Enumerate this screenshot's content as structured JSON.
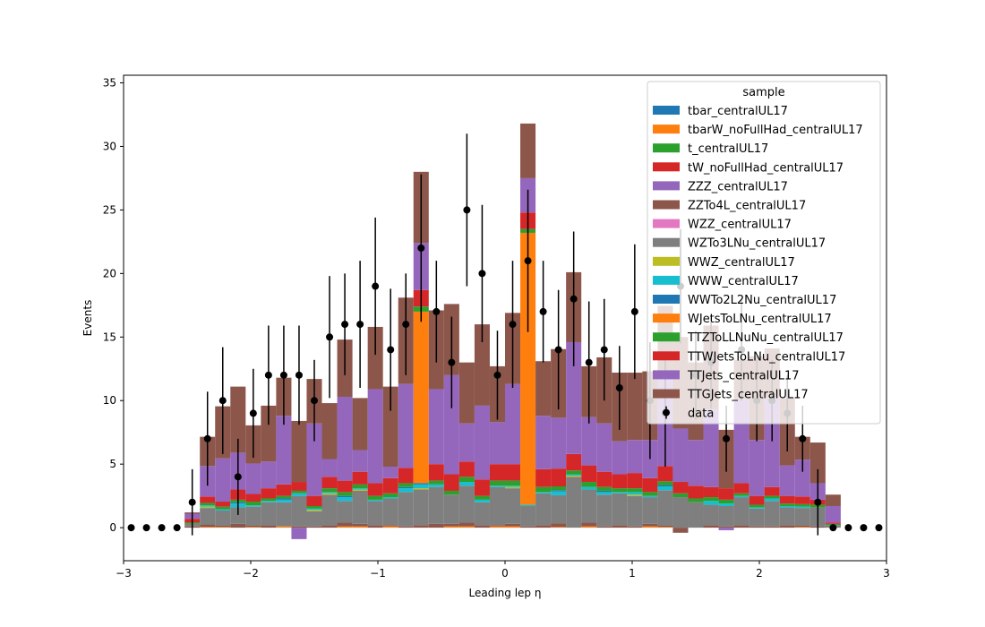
{
  "chart_data": {
    "type": "bar",
    "stacked": true,
    "histogram": true,
    "title": "",
    "xlabel": "Leading lep η",
    "ylabel": "Events",
    "xlim": [
      -3,
      3
    ],
    "ylim": [
      -2.6,
      35.6
    ],
    "xticks": [
      -3,
      -2,
      -1,
      0,
      1,
      2,
      3
    ],
    "xtick_labels": [
      "−3",
      "−2",
      "−1",
      "0",
      "1",
      "2",
      "3"
    ],
    "yticks": [
      0,
      5,
      10,
      15,
      20,
      25,
      30,
      35
    ],
    "ytick_labels": [
      "0",
      "5",
      "10",
      "15",
      "20",
      "25",
      "30",
      "35"
    ],
    "legend_title": "sample",
    "legend_position": "top-right",
    "bin_edges": [
      -3.0,
      -2.88,
      -2.76,
      -2.64,
      -2.52,
      -2.4,
      -2.28,
      -2.16,
      -2.04,
      -1.92,
      -1.8,
      -1.68,
      -1.56,
      -1.44,
      -1.32,
      -1.2,
      -1.08,
      -0.96,
      -0.84,
      -0.72,
      -0.6,
      -0.48,
      -0.36,
      -0.24,
      -0.12,
      0.0,
      0.12,
      0.24,
      0.36,
      0.48,
      0.6,
      0.72,
      0.84,
      0.96,
      1.08,
      1.2,
      1.32,
      1.44,
      1.56,
      1.68,
      1.8,
      1.92,
      2.04,
      2.16,
      2.28,
      2.4,
      2.52,
      2.64,
      2.76,
      2.88,
      3.0
    ],
    "series": [
      {
        "name": "tbar_centralUL17",
        "color": "#1f77b4",
        "values": [
          0,
          0,
          0,
          0,
          0,
          0,
          0,
          0,
          0,
          0,
          0,
          0,
          0,
          0,
          0,
          0,
          0,
          0,
          0,
          0,
          0,
          0,
          0,
          0,
          0,
          0,
          0,
          0,
          0,
          0,
          0,
          0,
          0,
          0,
          0,
          0,
          0,
          0,
          0,
          0,
          0,
          0,
          0,
          0,
          0,
          0,
          0,
          0,
          0,
          0
        ]
      },
      {
        "name": "tbarW_noFullHad_centralUL17",
        "color": "#ff7f0e",
        "values": [
          0,
          0,
          0,
          0,
          0,
          0.05,
          0.05,
          0,
          0.05,
          0,
          0.1,
          0,
          0,
          0,
          0.1,
          0.1,
          0,
          0.1,
          0,
          0,
          0,
          0.1,
          0.1,
          0,
          0.1,
          0.1,
          0,
          0,
          0.05,
          0,
          0.1,
          0,
          0,
          0,
          0.1,
          0.05,
          0,
          0,
          0,
          0,
          0,
          0,
          0,
          0,
          0.05,
          0,
          0,
          0,
          0,
          0
        ]
      },
      {
        "name": "t_centralUL17",
        "color": "#2ca02c",
        "values": [
          0,
          0,
          0,
          0,
          0,
          0,
          0,
          0,
          0,
          0,
          0,
          0,
          0,
          0,
          0,
          0,
          0,
          0,
          0,
          0,
          0,
          0,
          0,
          0,
          0,
          0,
          0,
          0,
          0,
          0,
          0,
          0,
          0,
          0,
          0,
          0,
          0,
          0,
          0,
          0,
          0,
          0,
          0,
          0,
          0,
          0,
          0,
          0,
          0,
          0
        ]
      },
      {
        "name": "tW_noFullHad_centralUL17",
        "color": "#d62728",
        "values": [
          0,
          0,
          0,
          0,
          0,
          0,
          0,
          0,
          0,
          0,
          0,
          0,
          0,
          0,
          0,
          0,
          0,
          0,
          0,
          0,
          0,
          0,
          0,
          0,
          0,
          0,
          0,
          0,
          0,
          0,
          0,
          0,
          0,
          0,
          0,
          0,
          0,
          0,
          0,
          0,
          0,
          0,
          0,
          0,
          0,
          0,
          0,
          0,
          0,
          0
        ]
      },
      {
        "name": "ZZZ_centralUL17",
        "color": "#9467bd",
        "values": [
          0,
          0,
          0,
          0,
          0,
          0,
          0,
          0,
          0,
          0,
          0,
          0,
          0,
          0,
          0,
          0,
          0,
          0,
          0,
          0,
          0,
          0,
          0,
          0,
          0,
          0,
          0,
          0,
          0,
          0,
          0,
          0,
          0,
          0,
          0,
          0,
          0,
          0,
          0,
          0,
          0,
          0,
          0,
          0,
          0,
          0,
          0,
          0,
          0,
          0
        ]
      },
      {
        "name": "ZZTo4L_centralUL17",
        "color": "#8c564b",
        "values": [
          0,
          0,
          0,
          0,
          0.1,
          0.2,
          0.1,
          0.3,
          0.1,
          0.2,
          0,
          0.1,
          0.1,
          0.2,
          0.3,
          0.2,
          0.2,
          0.1,
          0.1,
          0.2,
          0.3,
          0.2,
          0.3,
          0.2,
          0.1,
          0.2,
          0.1,
          0.2,
          0.3,
          0,
          0.3,
          0.1,
          0.2,
          0.1,
          0.2,
          0.1,
          -0.4,
          0,
          0.2,
          0.1,
          0.2,
          0.1,
          0.1,
          0.2,
          0.1,
          0.1,
          0,
          0,
          0,
          0
        ]
      },
      {
        "name": "WZZ_centralUL17",
        "color": "#e377c2",
        "values": [
          0,
          0,
          0,
          0,
          0,
          0,
          0,
          0,
          0,
          0,
          0,
          0,
          0,
          0,
          0,
          0,
          0,
          0,
          0,
          0,
          0,
          0,
          0,
          0,
          0,
          0,
          0,
          0,
          0,
          0,
          0,
          0,
          0,
          0,
          0,
          0,
          0,
          0,
          0,
          0,
          0,
          0,
          0,
          0,
          0,
          0,
          0,
          0,
          0,
          0
        ]
      },
      {
        "name": "WZTo3LNu_centralUL17",
        "color": "#7f7f7f",
        "values": [
          0,
          0,
          0,
          0,
          0.2,
          1.3,
          1.2,
          1.3,
          1.5,
          1.8,
          1.9,
          2.4,
          1.2,
          2.4,
          1.7,
          2.6,
          1.9,
          2.1,
          2.7,
          2.8,
          2.9,
          2.3,
          2.9,
          1.8,
          3.0,
          2.8,
          1.6,
          2.5,
          2.2,
          4.0,
          2.6,
          2.5,
          2.5,
          2.4,
          2.1,
          2.8,
          2.4,
          2.0,
          1.6,
          1.6,
          2.2,
          1.4,
          2.0,
          1.4,
          1.4,
          1.5,
          0.2,
          0,
          0,
          0
        ]
      },
      {
        "name": "WWZ_centralUL17",
        "color": "#bcbd22",
        "values": [
          0,
          0,
          0,
          0,
          0,
          0.1,
          0,
          0,
          0,
          0,
          0,
          0,
          0.1,
          0.1,
          0,
          0.1,
          0,
          0,
          0,
          0.1,
          0,
          0,
          0,
          0,
          0,
          0.1,
          0,
          0,
          0,
          0.1,
          0,
          0,
          0,
          0.1,
          0,
          0,
          0,
          0,
          0,
          0,
          0,
          0,
          0,
          0,
          0,
          0,
          0,
          0,
          0,
          0
        ]
      },
      {
        "name": "WWW_centralUL17",
        "color": "#17becf",
        "values": [
          0,
          0,
          0,
          0,
          0,
          0.1,
          0.1,
          0.3,
          0.1,
          0.1,
          0.2,
          0.2,
          0.1,
          0.1,
          0.3,
          0.1,
          0.1,
          0.1,
          0.3,
          0.3,
          0.2,
          0,
          0.3,
          0.2,
          0.1,
          0.1,
          0.1,
          0.1,
          0.3,
          0.1,
          0.2,
          0.2,
          0.1,
          0.2,
          0.1,
          0.3,
          0,
          0,
          0.3,
          0.2,
          0.1,
          0.1,
          0.2,
          0.1,
          0.1,
          0,
          0,
          0,
          0,
          0
        ]
      },
      {
        "name": "WWTo2L2Nu_centralUL17",
        "color": "#1f77b4",
        "values": [
          0,
          0,
          0,
          0,
          0,
          0,
          0,
          0.1,
          0,
          0,
          0.1,
          0,
          0,
          0,
          0.1,
          0,
          0,
          0,
          0.1,
          0.1,
          0,
          0,
          0,
          0,
          0,
          0,
          0,
          0,
          0.1,
          0,
          0,
          0.1,
          0,
          0,
          0,
          0.1,
          0,
          0,
          0,
          0,
          0,
          0,
          0,
          0,
          0,
          0,
          0,
          0,
          0,
          0
        ]
      },
      {
        "name": "WJetsToLNu_centralUL17",
        "color": "#ff7f0e",
        "values": [
          0,
          0,
          0,
          0,
          0,
          0,
          0,
          0,
          0,
          0,
          0,
          0,
          0,
          0,
          0,
          0,
          0,
          0,
          0,
          13.5,
          0,
          0,
          0,
          0,
          0,
          0,
          21.4,
          0,
          0,
          0,
          0,
          0,
          0,
          0,
          0,
          0,
          0,
          0,
          0,
          0,
          0,
          0,
          0,
          0,
          0,
          0,
          0,
          0,
          0,
          0
        ]
      },
      {
        "name": "TTZToLLNuNu_centralUL17",
        "color": "#2ca02c",
        "values": [
          0,
          0,
          0,
          0,
          0.1,
          0.2,
          0.2,
          0.2,
          0.3,
          0.2,
          0.2,
          0.2,
          0.2,
          0.3,
          0.3,
          0.3,
          0.3,
          0.3,
          0.3,
          0.4,
          0.3,
          0.3,
          0.4,
          0.3,
          0.4,
          0.4,
          0.3,
          0.4,
          0.3,
          0.3,
          0.4,
          0.3,
          0.3,
          0.3,
          0.3,
          0.3,
          0.3,
          0.3,
          0.3,
          0.3,
          0.2,
          0.2,
          0.2,
          0.2,
          0.2,
          0.2,
          0.1,
          0,
          0,
          0
        ]
      },
      {
        "name": "TTWJetsToLNu_centralUL17",
        "color": "#d62728",
        "values": [
          0,
          0,
          0,
          0,
          0.3,
          0.5,
          0.4,
          0.8,
          0.6,
          0.8,
          0.9,
          0.7,
          0.8,
          0.9,
          0.9,
          1.0,
          1.0,
          1.2,
          1.2,
          1.3,
          1.3,
          1.3,
          1.2,
          1.3,
          1.3,
          1.3,
          1.3,
          1.4,
          1.4,
          1.3,
          1.3,
          1.2,
          1.1,
          1.2,
          1.1,
          1.2,
          0.9,
          1.0,
          0.8,
          0.9,
          0.8,
          0.7,
          0.7,
          0.6,
          0.6,
          0.4,
          0.1,
          0,
          0,
          0
        ]
      },
      {
        "name": "TTJets_centralUL17",
        "color": "#9467bd",
        "values": [
          0,
          0,
          0,
          0,
          0.4,
          2.4,
          3.4,
          2.9,
          2.4,
          2.1,
          5.4,
          -0.9,
          5.7,
          1.4,
          6.6,
          1.7,
          7.4,
          0.9,
          6.6,
          3.7,
          5.9,
          7.8,
          3.0,
          5.8,
          3.3,
          6.3,
          2.7,
          4.2,
          4.0,
          8.8,
          3.8,
          3.8,
          2.6,
          2.6,
          3.0,
          7.3,
          4.2,
          3.6,
          6.1,
          -0.2,
          6.6,
          4.4,
          7.0,
          2.4,
          2.9,
          1.3,
          1.3,
          0,
          0,
          0
        ]
      },
      {
        "name": "TTGJets_centralUL17",
        "color": "#8c564b",
        "values": [
          0,
          0,
          0,
          0,
          0.1,
          2.3,
          4.1,
          5.2,
          3.0,
          4.4,
          3.0,
          4.8,
          3.5,
          4.4,
          4.5,
          4.1,
          4.9,
          6.3,
          6.8,
          5.6,
          6.2,
          5.6,
          4.8,
          6.4,
          4.4,
          5.6,
          4.3,
          4.3,
          5.4,
          5.5,
          4.0,
          5.2,
          5.4,
          5.3,
          5.4,
          5.3,
          7.2,
          6.1,
          6.6,
          4.6,
          3.1,
          6.6,
          3.9,
          5.3,
          1.8,
          3.2,
          0.9,
          0,
          0,
          0
        ]
      }
    ],
    "data_points": {
      "name": "data",
      "x": [
        -2.94,
        -2.82,
        -2.7,
        -2.58,
        -2.46,
        -2.34,
        -2.22,
        -2.1,
        -1.98,
        -1.86,
        -1.74,
        -1.62,
        -1.5,
        -1.38,
        -1.26,
        -1.14,
        -1.02,
        -0.9,
        -0.78,
        -0.66,
        -0.54,
        -0.42,
        -0.3,
        -0.18,
        -0.06,
        0.06,
        0.18,
        0.3,
        0.42,
        0.54,
        0.66,
        0.78,
        0.9,
        1.02,
        1.14,
        1.26,
        1.38,
        1.5,
        1.62,
        1.74,
        1.86,
        1.98,
        2.1,
        2.22,
        2.34,
        2.46,
        2.58,
        2.7,
        2.82,
        2.94
      ],
      "y": [
        0,
        0,
        0,
        0,
        2,
        7,
        10,
        4,
        9,
        12,
        12,
        12,
        10,
        15,
        16,
        16,
        19,
        14,
        16,
        22,
        17,
        13,
        25,
        20,
        12,
        16,
        21,
        17,
        14,
        18,
        13,
        14,
        11,
        17,
        10,
        9,
        19,
        12,
        13,
        7,
        14,
        10,
        10,
        9,
        7,
        2,
        0,
        0,
        0,
        0
      ],
      "yerr": [
        0,
        0,
        0,
        0,
        2.6,
        3.7,
        4.2,
        3.0,
        3.5,
        3.9,
        3.9,
        3.9,
        3.2,
        4.8,
        4.0,
        5.0,
        5.4,
        4.8,
        4.0,
        5.8,
        4.0,
        3.6,
        6.0,
        5.4,
        3.5,
        5.0,
        5.6,
        4.0,
        4.7,
        5.3,
        4.8,
        4.0,
        3.3,
        5.3,
        4.6,
        4.2,
        4.5,
        3.5,
        3.6,
        2.6,
        4.0,
        3.2,
        3.2,
        3.0,
        2.6,
        2.6,
        0,
        0,
        0,
        0
      ],
      "color": "#000000"
    }
  }
}
